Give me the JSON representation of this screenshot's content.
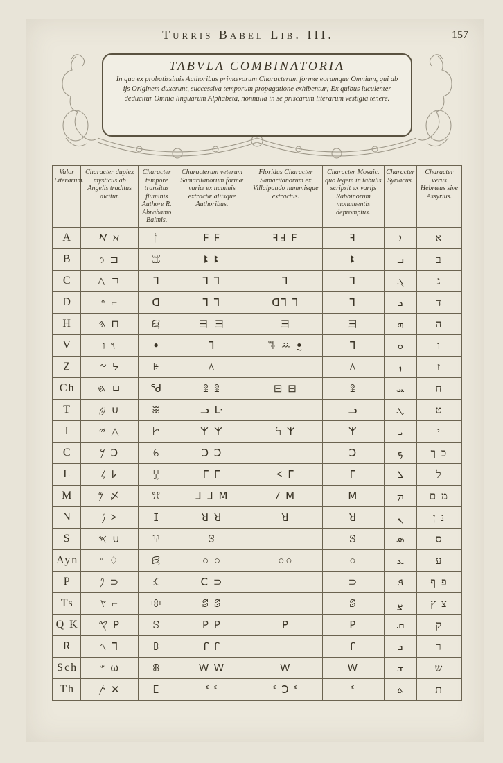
{
  "running_head": "Turris Babel Lib. III.",
  "page_number": "157",
  "cartouche": {
    "title": "TABVLA COMBINATORIA",
    "text": "In qua ex probatissimis Authoribus primævorum Characterum formæ eorumque Omnium, qui ab ijs Originem duxerunt, successiva temporum propagatione exhibentur; Ex quibus luculenter deducitur Omnia linguarum Alphabeta, nonnulla in se priscarum literarum vestigia tenere."
  },
  "columns": [
    "Valor Literarum.",
    "Character duplex mysticus ab Angelis traditus dicitur.",
    "Character tempore transitus fluminis Authore R. Abrahamo Balmis.",
    "Characterum veterum Samaritanorum formæ variæ ex nummis extractæ aliisque Authoribus.",
    "Floridus Character Samaritanorum ex Villalpando nummisque extractus.",
    "Character Mosaic. quo legem in tabulis scripsit ex varijs Rabbinorum monumentis depromptus.",
    "Character Syriacus.",
    "Character verus Hebræus sive Assyrius."
  ],
  "rows": [
    {
      "label": "A",
      "cells": [
        "𐡀 ℵ",
        "ᚪ",
        "F   F",
        "ꟻꓞ ꓝ",
        "ꟻ",
        "ܐ",
        "א"
      ]
    },
    {
      "label": "B",
      "cells": [
        "𐤁 ⊐",
        "ꕭ",
        "ꔪ   ꔪ",
        "",
        "ꔪ",
        "ܒ",
        "ב"
      ]
    },
    {
      "label": "C",
      "cells": [
        "𐤂 ㄱ",
        "ᒣ",
        "ꓶ  ꓶ",
        "ꓶ",
        "ꓶ",
        "ܓ",
        "ג"
      ]
    },
    {
      "label": "D",
      "cells": [
        "𐤃 ⌐",
        "ꓷ",
        "ꓶ  ꓶ",
        "ꓷꓶ ꓶ",
        "ꓶ",
        "ܕ",
        "ד"
      ]
    },
    {
      "label": "H",
      "cells": [
        "𐤄 ⊓",
        "ꗛ",
        "ヨ  ヨ",
        "ヨ",
        "ヨ",
        "ܗ",
        "ה"
      ]
    },
    {
      "label": "V",
      "cells": [
        "𐤅 ו",
        "ꔹ",
        "ᒣ",
        "ꕐ ꕁ ꔸ",
        "ᒣ",
        "ܘ",
        "ו"
      ]
    },
    {
      "label": "Z",
      "cells": [
        "𐤆 ᔭ",
        "ꗍ",
        "ꕔ",
        "",
        "ꕔ",
        "ܙ",
        "ז"
      ]
    },
    {
      "label": "Ch",
      "cells": [
        "𐤇 ㅁ",
        "ᖁ",
        "ꖵ ꖵ",
        "⊟ ⊟",
        "ꖵ",
        "ܚ",
        "ח"
      ]
    },
    {
      "label": "T",
      "cells": [
        "𐤈 ∪",
        "ꖿ",
        "ᓗ ᒷ",
        "",
        "ᓗ",
        "ܛ",
        "ט"
      ]
    },
    {
      "label": "I",
      "cells": [
        "𐤉 △",
        "ꔵ",
        "𐌙 𐌙",
        "ꕪ 𐌙",
        "𐌙",
        "ܝ",
        "י"
      ]
    },
    {
      "label": "C",
      "cells": [
        "𐤊 ꓛ",
        "ꕃ",
        "ꓛ ꓛ",
        "",
        "ꓛ",
        "ܟ",
        "כ ך"
      ]
    },
    {
      "label": "L",
      "cells": [
        "𐤋 𐌋",
        "ꗸ",
        "ᒥ  ᒥ",
        "< ᒥ",
        "ᒥ",
        "ܠ",
        "ל"
      ]
    },
    {
      "label": "M",
      "cells": [
        "𐤌 〆",
        "ꕮ",
        "ᒧ ᒧ ꓟ",
        "Ⳇ  ꓟ",
        "ꓟ",
        "ܡ",
        "מ ם"
      ]
    },
    {
      "label": "N",
      "cells": [
        "𐤍 >",
        "ꕯ",
        "ꓤ  ꓤ",
        "ꓤ",
        "ꓤ",
        "ܢ",
        "נ ן"
      ]
    },
    {
      "label": "S",
      "cells": [
        "𐤎 ∪",
        "ꖬ",
        "ꕷ",
        "",
        "ꕷ",
        "ܣ",
        "ס"
      ]
    },
    {
      "label": "Ayn",
      "cells": [
        "𐤏 ♢",
        "ꗛ",
        "○  ○",
        "○○",
        "○",
        "ܥ",
        "ע"
      ]
    },
    {
      "label": "P",
      "cells": [
        "𐤐 ⊃",
        "ꕿ",
        "ꓚ  ⊃",
        "",
        "⊃",
        "ܦ",
        "פ ף"
      ]
    },
    {
      "label": "Ts",
      "cells": [
        "𐤑 ⌐",
        "ꗳ",
        "ꕷ  ꕷ",
        "",
        "ꕷ",
        "ܨ",
        "צ ץ"
      ]
    },
    {
      "label": "Q K",
      "cells": [
        "𐤒 ꓑ",
        "ꕶ",
        "P   P",
        "ꓑ",
        "P",
        "ܩ",
        "ק"
      ]
    },
    {
      "label": "R",
      "cells": [
        "𐤓 ᒣ",
        "ꕗ",
        "ꓩ   ꓩ",
        "",
        "ꓩ",
        "ܪ",
        "ר"
      ]
    },
    {
      "label": "Sch",
      "cells": [
        "𐤔 ω",
        "ꕬ",
        "W  W",
        "W",
        "W",
        "ܫ",
        "ש"
      ]
    },
    {
      "label": "Th",
      "cells": [
        "𐤕 ✕",
        "ꗋ",
        "ᓫ  ᓫ",
        "ᓫ ꓛ ᓫ",
        "ᓫ",
        "ܬ",
        "ת"
      ]
    }
  ]
}
